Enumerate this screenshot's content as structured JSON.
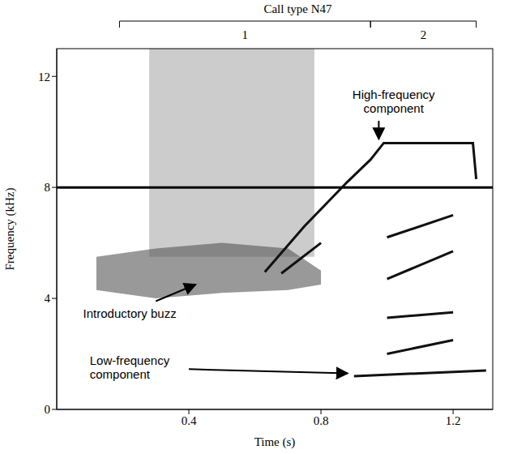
{
  "chart_data": {
    "type": "spectrogram",
    "title": "Call type N47",
    "x_label": "Time (s)",
    "y_label": "Frequency (kHz)",
    "xlim": [
      0,
      1.32
    ],
    "ylim": [
      0,
      13
    ],
    "xticks": [
      0.4,
      0.8,
      1.2
    ],
    "yticks": [
      0,
      4,
      8,
      12
    ],
    "reference_y": 8,
    "segments": [
      {
        "label": "1",
        "start": 0.19,
        "end": 0.95
      },
      {
        "label": "2",
        "start": 0.95,
        "end": 1.27
      }
    ],
    "series": [
      {
        "type": "band",
        "color": "#aaaaaa",
        "x": [
          0.28,
          0.5,
          0.78
        ],
        "values": [
          [
            5.5,
            13
          ],
          [
            5.5,
            13
          ],
          [
            5.5,
            13
          ]
        ]
      },
      {
        "type": "band",
        "color": "#555555",
        "x": [
          0.12,
          0.3,
          0.5,
          0.7,
          0.8
        ],
        "values": [
          [
            4.3,
            5.5
          ],
          [
            4.0,
            5.8
          ],
          [
            4.2,
            6.0
          ],
          [
            4.3,
            5.8
          ],
          [
            4.5,
            5.0
          ]
        ]
      },
      {
        "type": "line",
        "color": "#111111",
        "x": [
          0.63,
          0.75,
          0.88,
          0.95,
          0.99,
          1.26,
          1.27
        ],
        "values": [
          4.95,
          6.6,
          8.2,
          9.0,
          9.6,
          9.6,
          8.3
        ]
      },
      {
        "type": "line",
        "color": "#111111",
        "x": [
          0.68,
          0.8
        ],
        "values": [
          4.9,
          6.0
        ]
      },
      {
        "type": "line",
        "color": "#111111",
        "x": [
          1.0,
          1.2
        ],
        "values": [
          6.2,
          7.0
        ]
      },
      {
        "type": "line",
        "color": "#111111",
        "x": [
          1.0,
          1.2
        ],
        "values": [
          4.7,
          5.7
        ]
      },
      {
        "type": "line",
        "color": "#111111",
        "x": [
          1.0,
          1.2
        ],
        "values": [
          3.3,
          3.5
        ]
      },
      {
        "type": "line",
        "color": "#111111",
        "x": [
          1.0,
          1.2
        ],
        "values": [
          2.0,
          2.5
        ]
      },
      {
        "type": "line",
        "color": "#111111",
        "x": [
          0.9,
          1.3
        ],
        "values": [
          1.2,
          1.4
        ]
      }
    ],
    "annotations": [
      {
        "text": "High-frequency component",
        "x": 1.02,
        "y": 11.2,
        "arrow_from": [
          0.975,
          10.4
        ],
        "arrow_to": [
          0.975,
          9.75
        ]
      },
      {
        "text": "Introductory buzz",
        "x": 0.08,
        "y": 3.3,
        "arrow_from": [
          0.3,
          3.9
        ],
        "arrow_to": [
          0.42,
          4.5
        ]
      },
      {
        "text": "Low-frequency component",
        "x": 0.1,
        "y": 1.6,
        "arrow_from": [
          0.4,
          1.45
        ],
        "arrow_to": [
          0.88,
          1.3
        ]
      }
    ]
  }
}
